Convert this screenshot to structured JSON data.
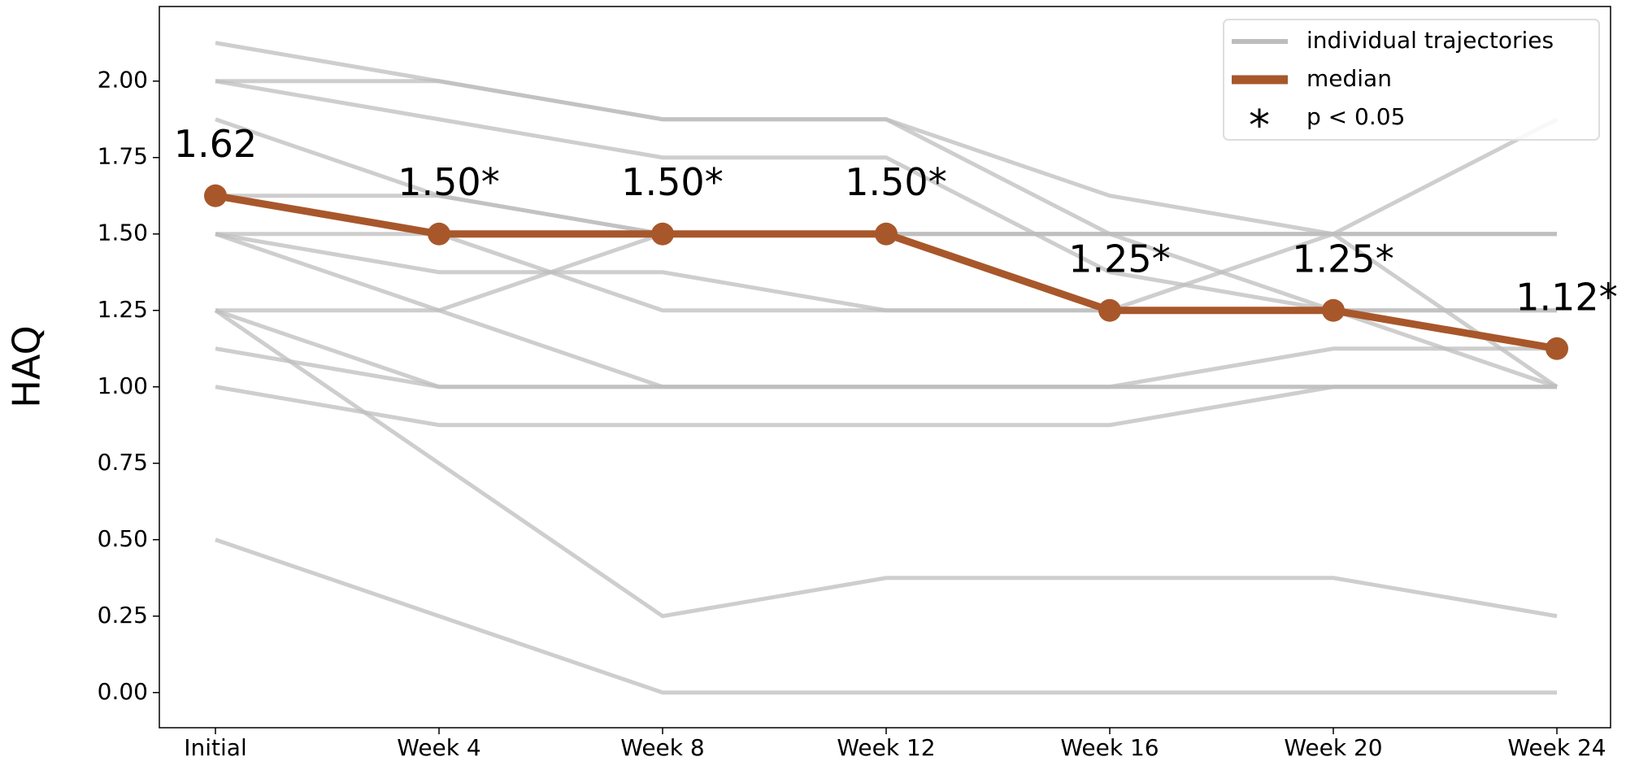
{
  "chart_data": {
    "type": "line",
    "ylabel": "HAQ",
    "categories": [
      "Initial",
      "Week 4",
      "Week 8",
      "Week 12",
      "Week 16",
      "Week 20",
      "Week 24"
    ],
    "ylim": [
      -0.115,
      2.244
    ],
    "yticks": [
      {
        "value": 0,
        "label": "0.00"
      },
      {
        "value": 0.25,
        "label": "0.25"
      },
      {
        "value": 0.5,
        "label": "0.50"
      },
      {
        "value": 0.75,
        "label": "0.75"
      },
      {
        "value": 1,
        "label": "1.00"
      },
      {
        "value": 1.25,
        "label": "1.25"
      },
      {
        "value": 1.5,
        "label": "1.50"
      },
      {
        "value": 1.75,
        "label": "1.75"
      },
      {
        "value": 2,
        "label": "2.00"
      }
    ],
    "trajectories": {
      "name": "individual trajectories",
      "color": "#bdbdbd",
      "lines": [
        [
          2.125,
          2.0,
          1.875,
          1.875,
          1.625,
          1.5,
          1.0
        ],
        [
          2.0,
          2.0,
          1.875,
          1.875,
          1.5,
          1.25,
          1.25
        ],
        [
          2.0,
          1.875,
          1.75,
          1.75,
          1.375,
          1.25,
          1.0
        ],
        [
          1.875,
          1.625,
          1.5,
          1.5,
          1.5,
          1.5,
          1.5
        ],
        [
          1.625,
          1.625,
          1.5,
          1.5,
          1.5,
          1.5,
          1.5
        ],
        [
          1.5,
          1.375,
          1.375,
          1.25,
          1.25,
          1.25,
          1.25
        ],
        [
          1.5,
          1.25,
          1.0,
          1.0,
          1.0,
          1.0,
          1.0
        ],
        [
          1.25,
          1.25,
          1.5,
          1.5,
          1.5,
          1.5,
          1.5
        ],
        [
          1.25,
          1.0,
          1.0,
          1.0,
          1.0,
          1.0,
          1.0
        ],
        [
          1.125,
          1.0,
          1.0,
          1.0,
          1.0,
          1.125,
          1.125
        ],
        [
          1.0,
          0.875,
          0.875,
          0.875,
          0.875,
          1.0,
          1.0
        ],
        [
          1.25,
          0.75,
          0.25,
          0.375,
          0.375,
          0.375,
          0.25
        ],
        [
          0.5,
          0.25,
          0.0,
          0.0,
          0.0,
          0.0,
          0.0
        ],
        [
          1.5,
          1.5,
          1.25,
          1.25,
          1.25,
          1.5,
          1.875
        ]
      ]
    },
    "median": {
      "name": "median",
      "color": "#a8572b",
      "values": [
        1.625,
        1.5,
        1.5,
        1.5,
        1.25,
        1.25,
        1.125
      ],
      "value_labels": [
        "1.62",
        "1.50*",
        "1.50*",
        "1.50*",
        "1.25*",
        "1.25*",
        "1.12*"
      ]
    },
    "significance": {
      "marker": "*",
      "label": "p < 0.05"
    },
    "legend": "upper right"
  }
}
